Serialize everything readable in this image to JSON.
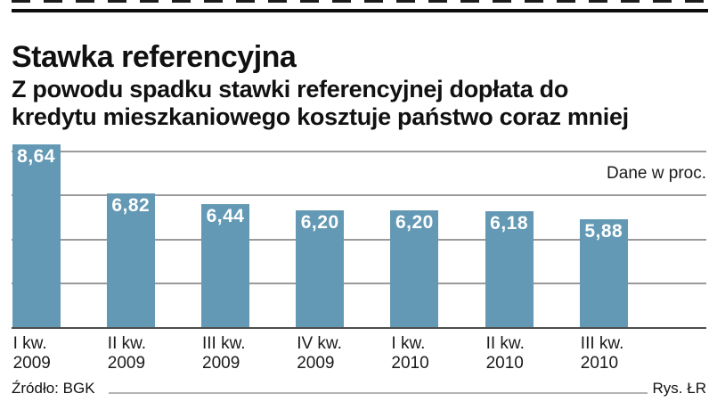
{
  "header": {
    "title": "Stawka referencyjna",
    "subtitle_line1": "Z powodu spadku stawki referencyjnej dopłata do",
    "subtitle_line2": "kredytu mieszkaniowego kosztuje państwo coraz mniej"
  },
  "chart_data": {
    "type": "bar",
    "title": "Stawka referencyjna",
    "unit_note": "Dane w proc.",
    "categories": [
      "I kw. 2009",
      "II kw. 2009",
      "III kw. 2009",
      "IV kw. 2009",
      "I kw. 2010",
      "II kw. 2010",
      "III kw. 2010"
    ],
    "category_lines": [
      [
        "I kw.",
        "2009"
      ],
      [
        "II kw.",
        "2009"
      ],
      [
        "III kw.",
        "2009"
      ],
      [
        "IV kw.",
        "2009"
      ],
      [
        "I kw.",
        "2010"
      ],
      [
        "II kw.",
        "2010"
      ],
      [
        "III kw.",
        "2010"
      ]
    ],
    "values": [
      8.64,
      6.82,
      6.44,
      6.2,
      6.2,
      6.18,
      5.88
    ],
    "value_labels": [
      "8,64",
      "6,82",
      "6,44",
      "6,20",
      "6,20",
      "6,18",
      "5,88"
    ],
    "ylim": [
      1.9,
      8.64
    ],
    "grid": true,
    "gridline_count": 4,
    "legend": "none",
    "bar_color": "#6399b4",
    "value_label_color": "#ffffff"
  },
  "footer": {
    "source": "Źródło: BGK",
    "credit": "Rys. ŁR"
  }
}
